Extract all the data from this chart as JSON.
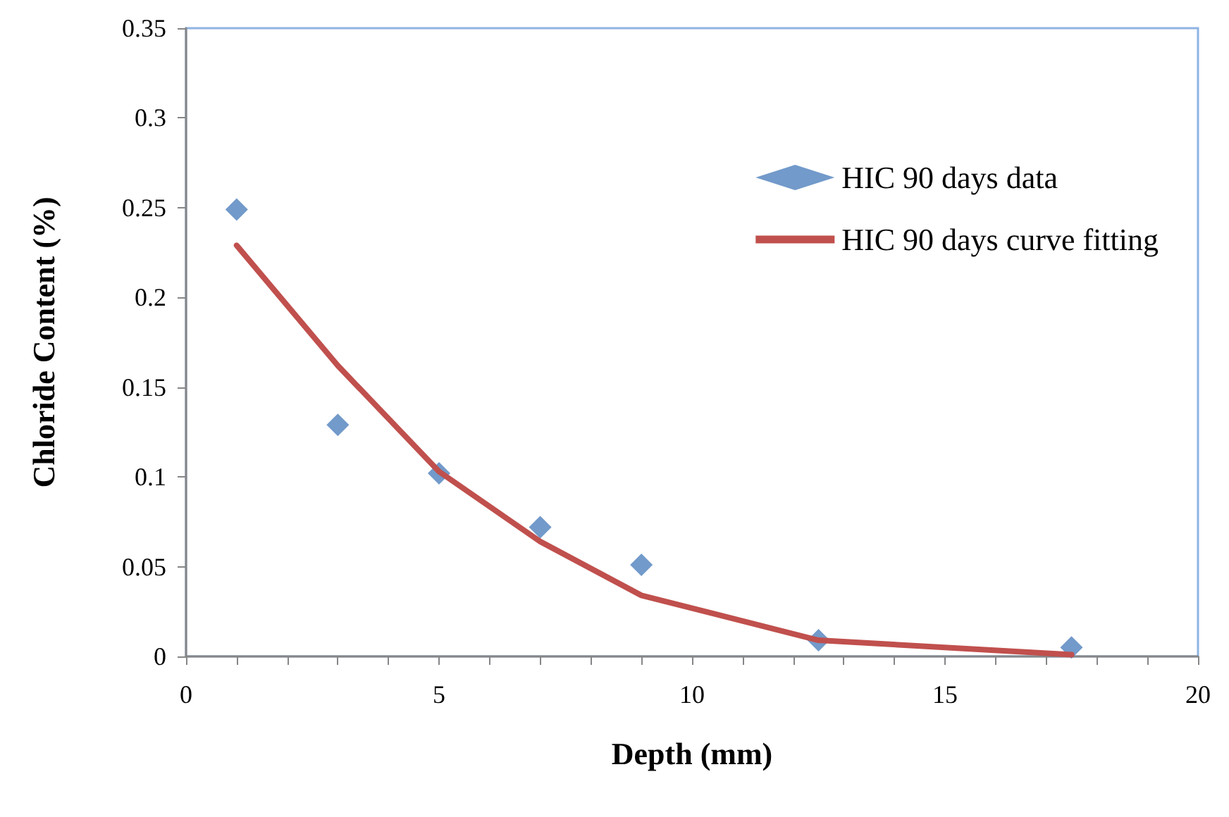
{
  "chart_data": {
    "type": "scatter",
    "xlabel": "Depth (mm)",
    "ylabel": "Chloride Content (%)",
    "xlim": [
      0,
      20
    ],
    "xticks": [
      0,
      {
        "value": 1,
        "label": null
      },
      {
        "value": 2,
        "label": null
      },
      {
        "value": 3,
        "label": null
      },
      {
        "value": 4,
        "label": null
      },
      5,
      {
        "value": 6,
        "label": null
      },
      {
        "value": 7,
        "label": null
      },
      {
        "value": 8,
        "label": null
      },
      {
        "value": 9,
        "label": null
      },
      10,
      {
        "value": 11,
        "label": null
      },
      {
        "value": 12,
        "label": null
      },
      {
        "value": 13,
        "label": null
      },
      {
        "value": 14,
        "label": null
      },
      15,
      {
        "value": 16,
        "label": null
      },
      {
        "value": 17,
        "label": null
      },
      {
        "value": 18,
        "label": null
      },
      {
        "value": 19,
        "label": null
      },
      20
    ],
    "ylim": [
      0,
      0.35
    ],
    "yticks": [
      0,
      0.05,
      0.1,
      0.15,
      0.2,
      0.25,
      0.3,
      0.35
    ],
    "grid": false,
    "legend": "top right",
    "series": [
      {
        "name": "HIC 90 days data",
        "marker": "diamond",
        "color": "#4f81bd",
        "x": [
          1,
          3,
          5,
          7,
          9,
          12.5,
          17.5
        ],
        "values": [
          0.249,
          0.129,
          0.102,
          0.072,
          0.051,
          0.009,
          0.005
        ]
      },
      {
        "name": "HIC 90 days curve fitting",
        "type": "line",
        "marker": "none",
        "line_style": "solid",
        "color": "#c0504d",
        "x": [
          1,
          3,
          5,
          7,
          9,
          12.5,
          17.5
        ],
        "values": [
          0.229,
          0.162,
          0.103,
          0.064,
          0.034,
          0.009,
          0.001
        ]
      }
    ]
  }
}
